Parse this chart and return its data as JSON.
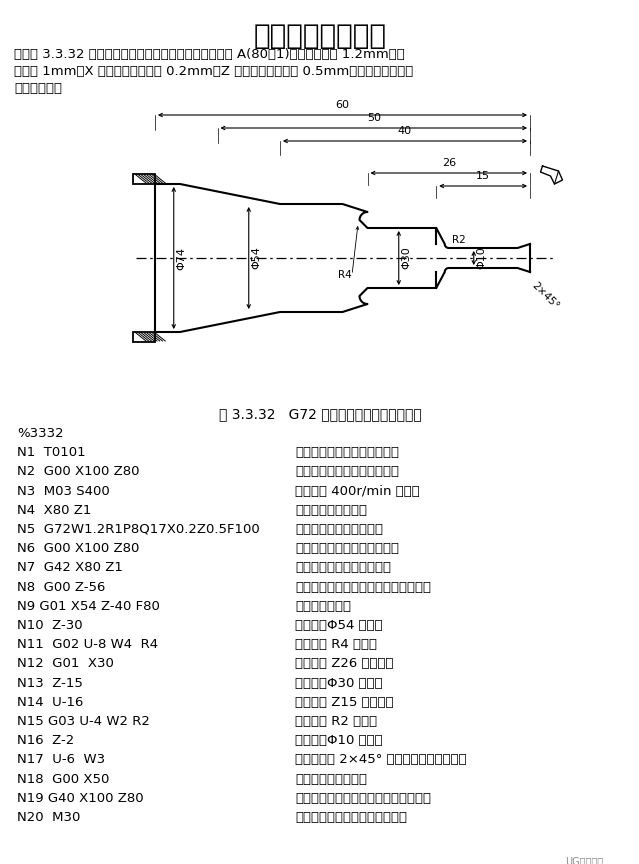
{
  "title": "车床编程实例十五",
  "desc_lines": [
    "编制图 3.3.32 所示零件的加工程序：要求循环起始点在 A(80，1)，切削深度为 1.2mm。退",
    "刀量为 1mm，X 方向精加工余量为 0.2mm，Z 方向精加工余量为 0.5mm，其中点划线部分",
    "为工件毛坯。"
  ],
  "fig_caption": "图 3.3.32   G72 外径粗切复合循环编程实例",
  "code_lines": [
    [
      "%3332",
      ""
    ],
    [
      "N1  T0101",
      "（换一号刀，确定其坐标系）"
    ],
    [
      "N2  G00 X100 Z80",
      "（到程序起点或换刀点位置）"
    ],
    [
      "N3  M03 S400",
      "（主轴以 400r/min 正转）"
    ],
    [
      "N4  X80 Z1",
      "（到循环起点位置）"
    ],
    [
      "N5  G72W1.2R1P8Q17X0.2Z0.5F100",
      "（外端面粗切循环加工）"
    ],
    [
      "N6  G00 X100 Z80",
      "（粗加工后，到换刀点位置）"
    ],
    [
      "N7  G42 X80 Z1",
      "（加入刀尖园弧半径补偿）"
    ],
    [
      "N8  G00 Z-56",
      "（精加工轮廓开始，到锥面延长线处）"
    ],
    [
      "N9 G01 X54 Z-40 F80",
      "（精加工锥面）"
    ],
    [
      "N10  Z-30",
      "（精加工Φ54 外圆）"
    ],
    [
      "N11  G02 U-8 W4  R4",
      "（精加工 R4 圆弧）"
    ],
    [
      "N12  G01  X30",
      "（精加工 Z26 处端面）"
    ],
    [
      "N13  Z-15",
      "（精加工Φ30 外圆）"
    ],
    [
      "N14  U-16",
      "（精加工 Z15 处端面）"
    ],
    [
      "N15 G03 U-4 W2 R2",
      "（精加工 R2 圆弧）"
    ],
    [
      "N16  Z-2",
      "（精加工Φ10 外圆）"
    ],
    [
      "N17  U-6  W3",
      "（精加工倒 2×45° 角，精加工轮廓结束）"
    ],
    [
      "N18  G00 X50",
      "（退出已加工表面）"
    ],
    [
      "N19 G40 X100 Z80",
      "（取消半径补偿，返回程序起点位置）"
    ],
    [
      "N20  M30",
      "（主轴停、主程序结束并复位）"
    ]
  ],
  "bg_color": "#ffffff"
}
